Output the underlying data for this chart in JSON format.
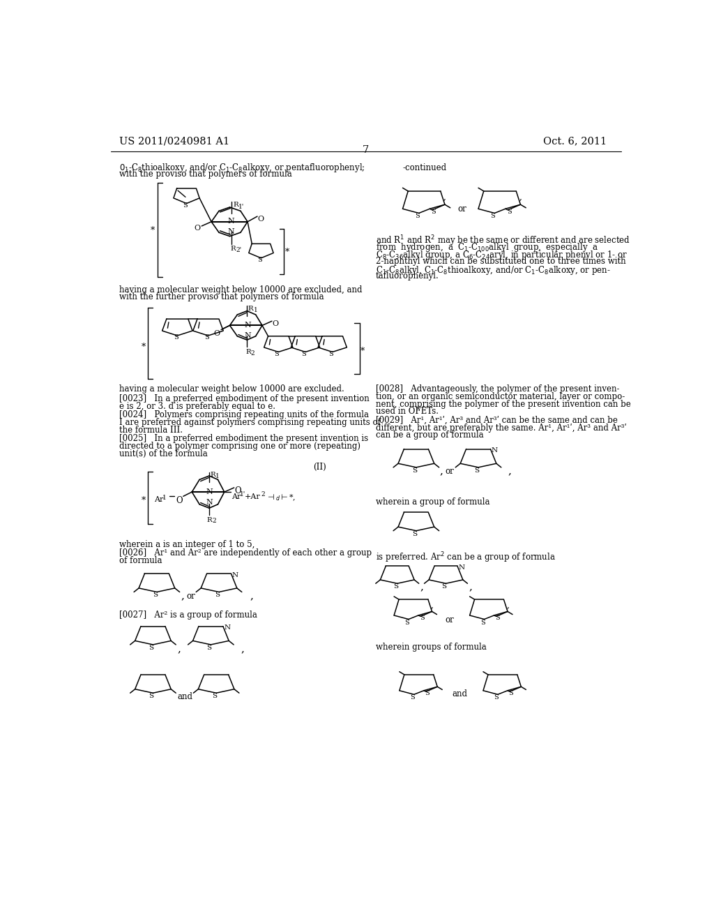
{
  "bg": "#ffffff",
  "header_left": "US 2011/0240981 A1",
  "header_right": "Oct. 6, 2011",
  "page_num": "7"
}
